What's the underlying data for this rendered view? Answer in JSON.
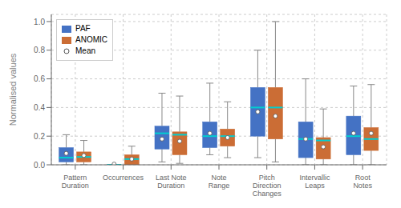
{
  "chart_data": {
    "type": "box",
    "categories": [
      "Pattern\nDuration",
      "Occurrences",
      "Last Note\nDuration",
      "Note\nRange",
      "Pitch\nDirection\nChanges",
      "Intervallic\nLeaps",
      "Root\nNotes"
    ],
    "ylabel": "Normalised values",
    "ylim": [
      0,
      1.05
    ],
    "yticks": [
      {
        "value": 0,
        "label": "0.0"
      },
      0.2,
      0.4,
      0.6,
      0.8,
      {
        "value": 1,
        "label": "1.0"
      }
    ],
    "grid": true,
    "legend": "upper left",
    "series": [
      {
        "name": "PAF",
        "color": "#4472c4",
        "boxes": [
          {
            "whislo": 0.0,
            "q1": 0.02,
            "med": 0.05,
            "q3": 0.12,
            "whishi": 0.21,
            "mean": 0.08
          },
          {
            "whislo": 0.0,
            "q1": 0.0,
            "med": 0.0,
            "q3": 0.0,
            "whishi": 0.0,
            "mean": 0.005
          },
          {
            "whislo": 0.02,
            "q1": 0.11,
            "med": 0.22,
            "q3": 0.27,
            "whishi": 0.5,
            "mean": 0.18
          },
          {
            "whislo": 0.07,
            "q1": 0.12,
            "med": 0.2,
            "q3": 0.3,
            "whishi": 0.57,
            "mean": 0.22
          },
          {
            "whislo": 0.05,
            "q1": 0.2,
            "med": 0.4,
            "q3": 0.54,
            "whishi": 0.8,
            "mean": 0.37
          },
          {
            "whislo": 0.0,
            "q1": 0.05,
            "med": 0.18,
            "q3": 0.3,
            "whishi": 0.6,
            "mean": 0.18
          },
          {
            "whislo": 0.0,
            "q1": 0.07,
            "med": 0.2,
            "q3": 0.34,
            "whishi": 0.55,
            "mean": 0.22
          }
        ]
      },
      {
        "name": "ANOMIC",
        "color": "#cb6d35",
        "boxes": [
          {
            "whislo": 0.0,
            "q1": 0.02,
            "med": 0.055,
            "q3": 0.09,
            "whishi": 0.17,
            "mean": 0.065
          },
          {
            "whislo": 0.0,
            "q1": 0.0,
            "med": 0.04,
            "q3": 0.07,
            "whishi": 0.13,
            "mean": 0.04
          },
          {
            "whislo": 0.01,
            "q1": 0.07,
            "med": 0.21,
            "q3": 0.23,
            "whishi": 0.48,
            "mean": 0.165
          },
          {
            "whislo": 0.05,
            "q1": 0.13,
            "med": 0.2,
            "q3": 0.25,
            "whishi": 0.44,
            "mean": 0.19
          },
          {
            "whislo": 0.02,
            "q1": 0.18,
            "med": 0.4,
            "q3": 0.54,
            "whishi": 1.0,
            "mean": 0.34
          },
          {
            "whislo": 0.0,
            "q1": 0.04,
            "med": 0.17,
            "q3": 0.19,
            "whishi": 0.39,
            "mean": 0.125
          },
          {
            "whislo": 0.0,
            "q1": 0.1,
            "med": 0.18,
            "q3": 0.26,
            "whishi": 0.56,
            "mean": 0.22
          }
        ]
      }
    ],
    "mean": {
      "name": "Mean",
      "color": "white",
      "marker": "circle"
    },
    "median": {
      "color": "#00ced1"
    }
  }
}
